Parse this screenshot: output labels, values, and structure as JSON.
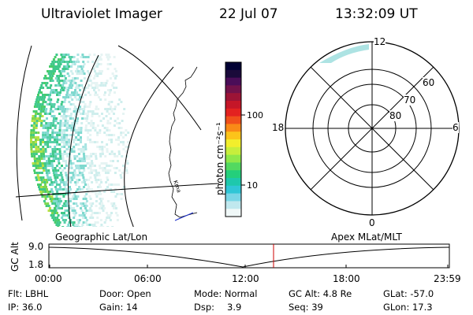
{
  "header": {
    "instrument": "Ultraviolet Imager",
    "date": "22 Jul 07",
    "time": "13:32:09 UT"
  },
  "colorbar": {
    "unit_label": "photon cm⁻²s⁻¹",
    "ticks": [
      "100",
      "10"
    ],
    "colors": [
      "#000033",
      "#1a0a3a",
      "#4a0d58",
      "#72124a",
      "#9c1436",
      "#c51628",
      "#e32220",
      "#f0501b",
      "#f98a17",
      "#fcc41a",
      "#f2ee2c",
      "#c7ee3c",
      "#8fe84a",
      "#52d960",
      "#24cf7b",
      "#1ec8ac",
      "#30c6d6",
      "#7ad6e6",
      "#c0e8ee",
      "#f0f8f8"
    ]
  },
  "polar_plot": {
    "lat_labels": [
      "60",
      "70",
      "80"
    ],
    "mlt_labels": {
      "top": "12",
      "left": "18",
      "right": "6",
      "bottom": "0"
    }
  },
  "timeline": {
    "y_axis_label": "GC Alt",
    "y_ticks": [
      "9.0",
      "1.8"
    ],
    "left_title": "Geographic Lat/Lon",
    "right_title": "Apex MLat/MLT",
    "x_ticks": [
      "00:00",
      "06:00",
      "12:00",
      "18:00",
      "23:59"
    ],
    "marker_color": "#cc0000"
  },
  "status": {
    "filter": "Flt: LBHL",
    "ip": "IP: 36.0",
    "door": "Door: Open",
    "gain": "Gain: 14",
    "mode": "Mode: Normal",
    "dsp": "Dsp:",
    "dsp_value": "3.9",
    "gc_alt": "GC Alt: 4.8 Re",
    "seq": "Seq: 39",
    "glat": "GLat: -57.0",
    "glon": "GLon: 17.3"
  },
  "map_labels": {
    "coast_text": "Krna"
  }
}
